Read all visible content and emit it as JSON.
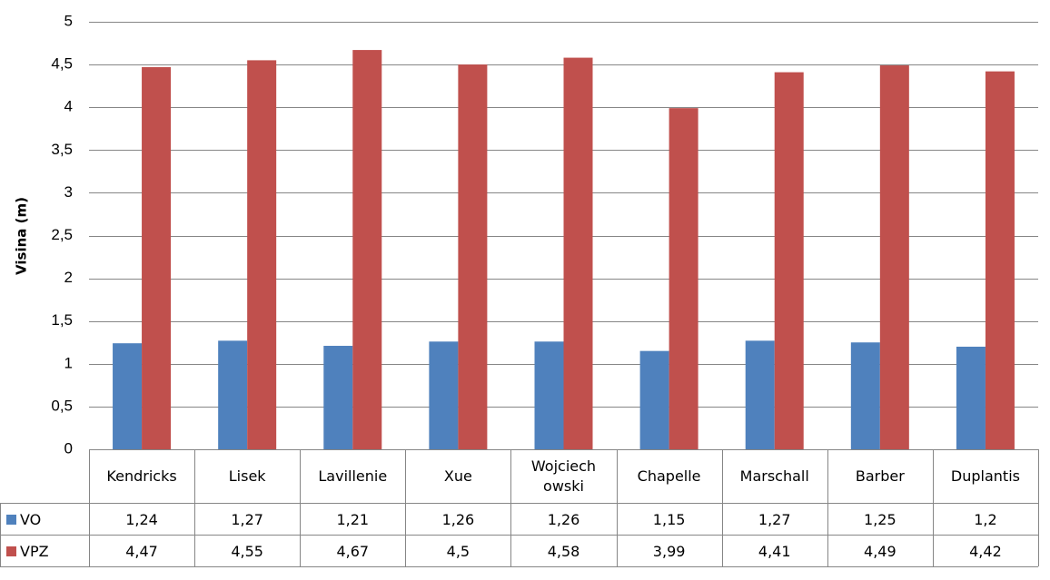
{
  "chart_data": {
    "type": "bar",
    "ylabel": "Visina (m)",
    "ylim": [
      0,
      5
    ],
    "yticks": [
      "0",
      "0,5",
      "1",
      "1,5",
      "2",
      "2,5",
      "3",
      "3,5",
      "4",
      "4,5",
      "5"
    ],
    "grid": true,
    "legend": "data-table",
    "categories": [
      [
        "Kendricks"
      ],
      [
        "Lisek"
      ],
      [
        "Lavillenie"
      ],
      [
        "Xue"
      ],
      [
        "Wojciech",
        "owski"
      ],
      [
        "Chapelle"
      ],
      [
        "Marschall"
      ],
      [
        "Barber"
      ],
      [
        "Duplantis"
      ]
    ],
    "series": [
      {
        "name": "VO",
        "color": "#4F81BD",
        "values": [
          1.24,
          1.27,
          1.21,
          1.26,
          1.26,
          1.15,
          1.27,
          1.25,
          1.2
        ],
        "labels": [
          "1,24",
          "1,27",
          "1,21",
          "1,26",
          "1,26",
          "1,15",
          "1,27",
          "1,25",
          "1,2"
        ]
      },
      {
        "name": "VPZ",
        "color": "#C0504D",
        "values": [
          4.47,
          4.55,
          4.67,
          4.5,
          4.58,
          3.99,
          4.41,
          4.49,
          4.42
        ],
        "labels": [
          "4,47",
          "4,55",
          "4,67",
          "4,5",
          "4,58",
          "3,99",
          "4,41",
          "4,49",
          "4,42"
        ]
      }
    ]
  }
}
